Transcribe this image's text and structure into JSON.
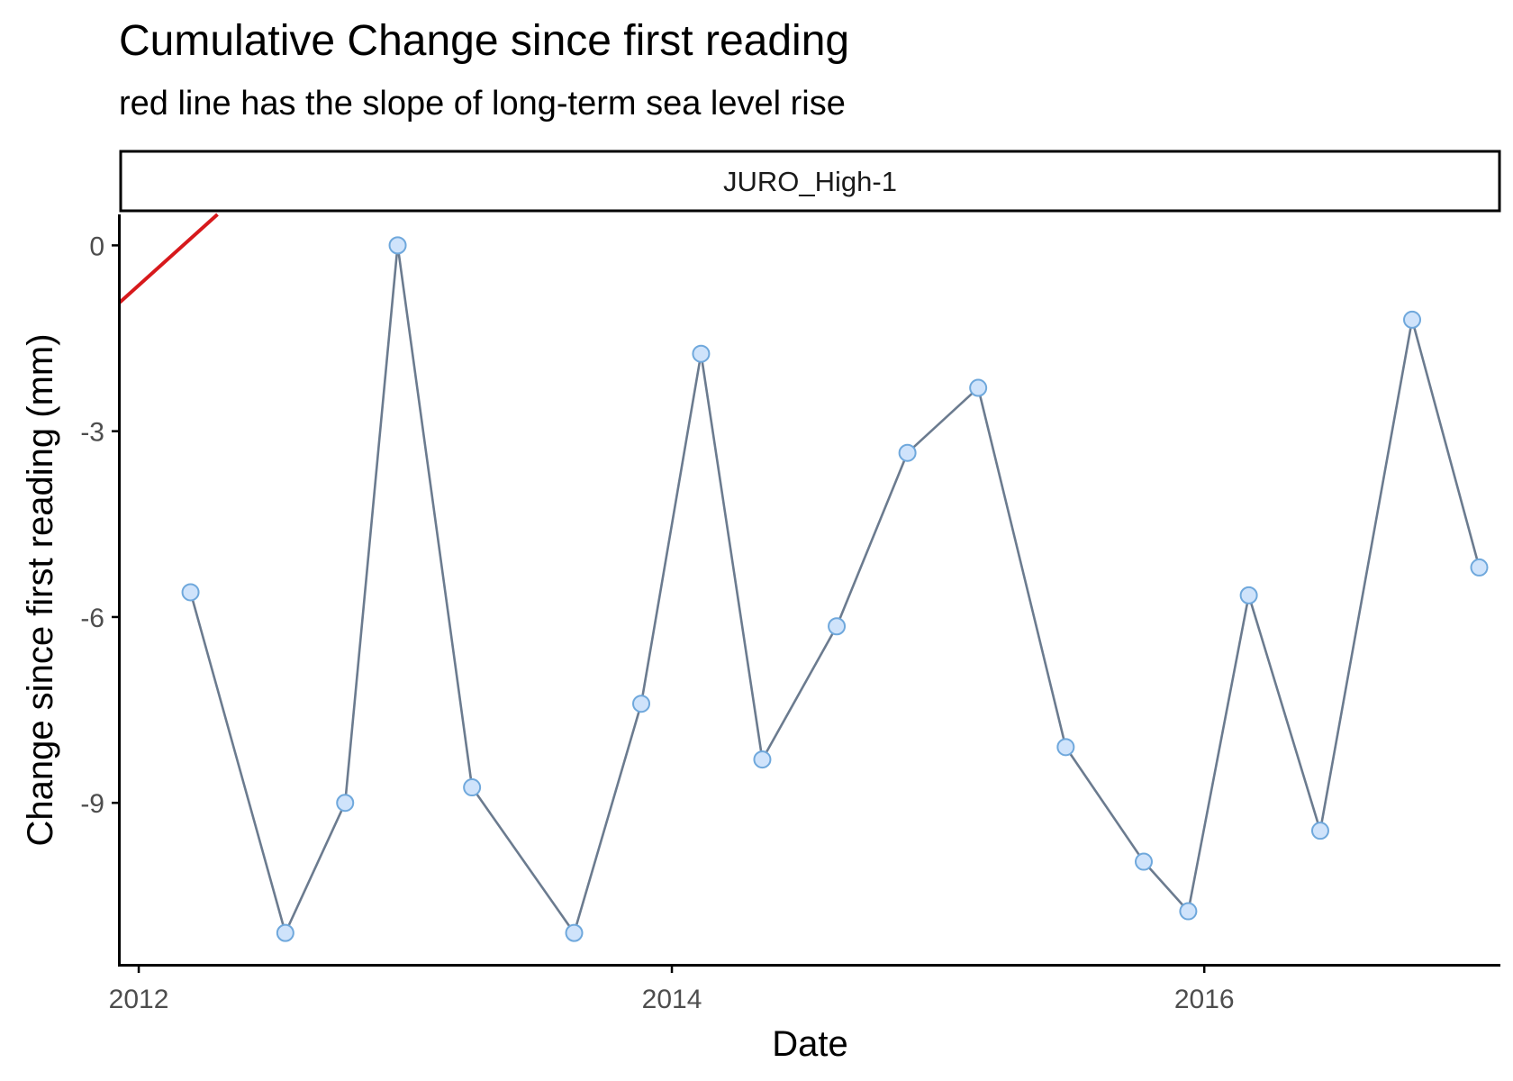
{
  "title": "Cumulative Change since first reading",
  "subtitle": "red line has the slope of long-term sea level rise",
  "facet_label": "JURO_High-1",
  "colors": {
    "series_line": "#6b7b8f",
    "point_fill": "#cfe3fb",
    "point_stroke": "#6fa8dc",
    "trend_line": "#d7191c",
    "axis": "#000000",
    "tick_text": "#4d4d4d"
  },
  "chart_data": {
    "type": "line",
    "title": "Cumulative Change since first reading",
    "subtitle": "red line has the slope of long-term sea level rise",
    "xlabel": "Date",
    "ylabel": "Change since first reading (mm)",
    "x_axis_type": "date",
    "x_ticks": [
      "2012",
      "2014",
      "2016"
    ],
    "y_ticks": [
      0,
      -3,
      -6,
      -9
    ],
    "xlim": [
      "2011-12-06",
      "2017-02-10"
    ],
    "ylim": [
      -11.6,
      0.5
    ],
    "grid": false,
    "series": [
      {
        "points": [
          {
            "x": "2012-03-12",
            "y": -5.6
          },
          {
            "x": "2012-07-20",
            "y": -11.1
          },
          {
            "x": "2012-10-10",
            "y": -9.0
          },
          {
            "x": "2012-12-21",
            "y": 0.0
          },
          {
            "x": "2013-04-02",
            "y": -8.75
          },
          {
            "x": "2013-08-20",
            "y": -11.1
          },
          {
            "x": "2013-11-20",
            "y": -7.4
          },
          {
            "x": "2014-02-10",
            "y": -1.75
          },
          {
            "x": "2014-05-05",
            "y": -8.3
          },
          {
            "x": "2014-08-15",
            "y": -6.15
          },
          {
            "x": "2014-11-20",
            "y": -3.35
          },
          {
            "x": "2015-02-25",
            "y": -2.3
          },
          {
            "x": "2015-06-25",
            "y": -8.1
          },
          {
            "x": "2015-10-10",
            "y": -9.95
          },
          {
            "x": "2015-12-10",
            "y": -10.75
          },
          {
            "x": "2016-03-02",
            "y": -5.65
          },
          {
            "x": "2016-06-08",
            "y": -9.45
          },
          {
            "x": "2016-10-12",
            "y": -1.2
          },
          {
            "x": "2017-01-12",
            "y": -5.2
          }
        ]
      }
    ],
    "reference_line": {
      "color": "red",
      "points": [
        {
          "x": "2011-12-06",
          "y": -0.92
        },
        {
          "x": "2012-04-18",
          "y": 0.5
        }
      ]
    }
  }
}
